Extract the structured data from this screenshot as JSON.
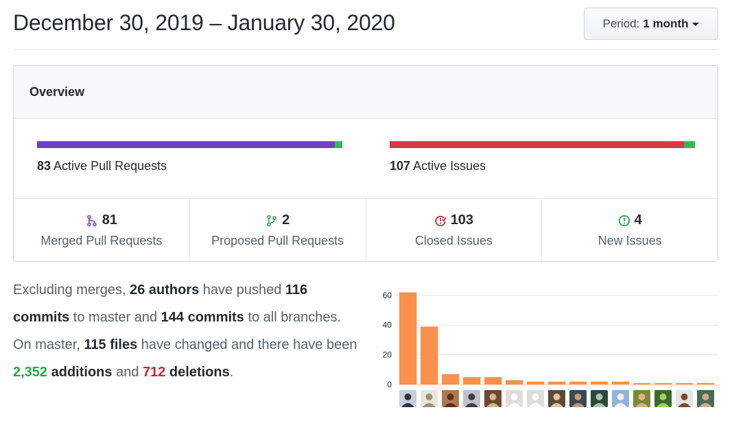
{
  "header": {
    "date_range": "December 30, 2019 – January 30, 2020",
    "period_label": "Period:",
    "period_value": "1 month"
  },
  "overview": {
    "title": "Overview",
    "pull_requests": {
      "count": "83",
      "label": "Active Pull Requests",
      "merged_fraction": 0.976,
      "open_fraction": 0.024,
      "merged_color": "#6f42c1",
      "open_color": "#2cbe4e"
    },
    "issues": {
      "count": "107",
      "label": "Active Issues",
      "closed_fraction": 0.963,
      "new_fraction": 0.037,
      "closed_color": "#d73a49",
      "new_color": "#2cbe4e"
    },
    "stats": [
      {
        "icon": "merged-pr-icon",
        "value": "81",
        "label": "Merged Pull Requests",
        "color": "#6f42c1"
      },
      {
        "icon": "proposed-pr-icon",
        "value": "2",
        "label": "Proposed Pull Requests",
        "color": "#28a745"
      },
      {
        "icon": "closed-issue-icon",
        "value": "103",
        "label": "Closed Issues",
        "color": "#cb2431"
      },
      {
        "icon": "new-issue-icon",
        "value": "4",
        "label": "New Issues",
        "color": "#28a745"
      }
    ]
  },
  "summary": {
    "t1": "Excluding merges, ",
    "authors": "26 authors",
    "t2": " have pushed ",
    "commits_master": "116 commits",
    "t3": " to master and ",
    "commits_all": "144 commits",
    "t4": " to all branches. On master, ",
    "files": "115 files",
    "t5": " have changed and there have been ",
    "additions_num": "2,352",
    "additions_word": " additions",
    "t6": " and ",
    "deletions_num": "712",
    "deletions_word": " deletions",
    "t7": "."
  },
  "chart_data": {
    "type": "bar",
    "values": [
      62,
      39,
      7,
      5,
      5,
      3,
      2,
      2,
      2,
      2,
      2,
      1,
      1,
      1,
      1
    ],
    "ylim": [
      0,
      65
    ],
    "yticks": [
      "0",
      "20",
      "40",
      "60"
    ],
    "bar_color": "#f9914d",
    "grid": true
  },
  "avatars": [
    {
      "bg": "#c9ced6",
      "fg": "#2d3640"
    },
    {
      "bg": "#e9e4da",
      "fg": "#9d8f7a"
    },
    {
      "bg": "#b07850",
      "fg": "#5a3420"
    },
    {
      "bg": "#bfc3c7",
      "fg": "#3a3f45"
    },
    {
      "bg": "#6b4a32",
      "fg": "#d6b48a"
    },
    {
      "bg": "#dddddd",
      "fg": "#ffffff"
    },
    {
      "bg": "#dddddd",
      "fg": "#ffffff"
    },
    {
      "bg": "#5a4a3c",
      "fg": "#e2c2a0"
    },
    {
      "bg": "#3a4a55",
      "fg": "#c29a78"
    },
    {
      "bg": "#2e4a3a",
      "fg": "#a8c4b0"
    },
    {
      "bg": "#8fb4d8",
      "fg": "#f4f0ee"
    },
    {
      "bg": "#7a8a3a",
      "fg": "#e0b080"
    },
    {
      "bg": "#3c6a2a",
      "fg": "#9cd060"
    },
    {
      "bg": "#e6e6e6",
      "fg": "#7a4a30"
    },
    {
      "bg": "#4a6a5a",
      "fg": "#d2a888"
    }
  ]
}
